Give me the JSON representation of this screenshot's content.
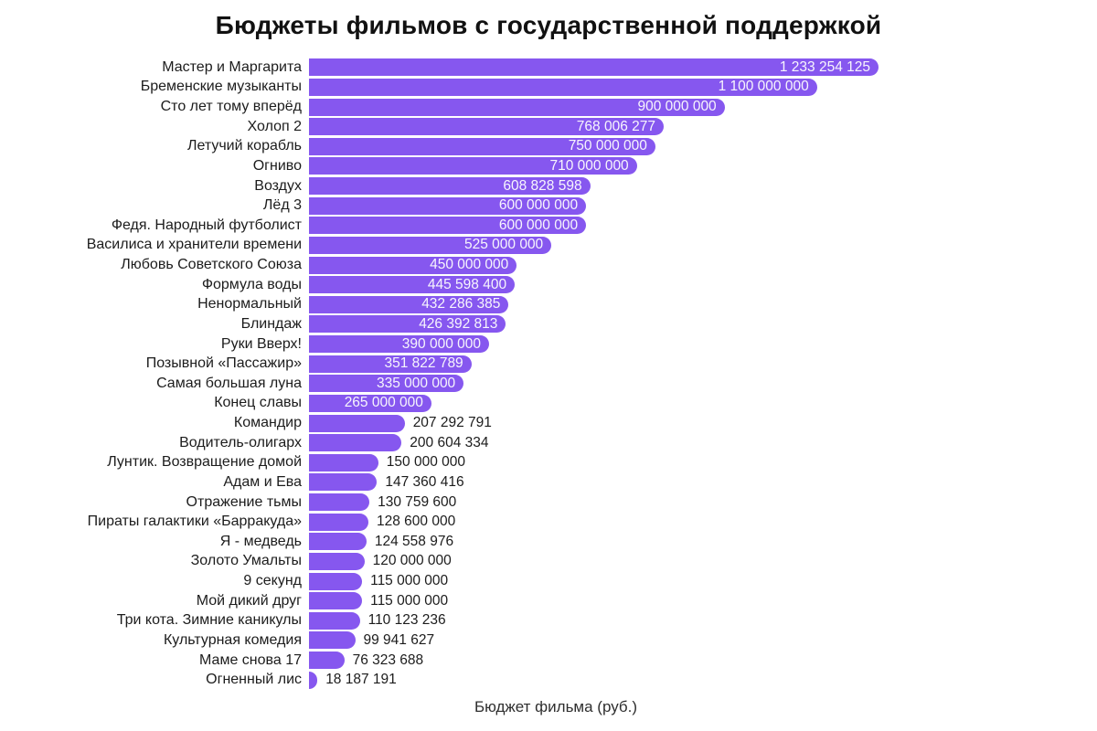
{
  "header": {
    "title": "Бюджеты фильмов с государственной поддержкой"
  },
  "axis": {
    "xlabel": "Бюджет фильма (руб.)"
  },
  "colors": {
    "bar": "#8657EF",
    "value_inside_text": "#f7f5fd",
    "value_outside_text": "#1c1c1c",
    "category_text": "#1c1c1c",
    "title_text": "#111111",
    "background": "#ffffff"
  },
  "chart_data": {
    "type": "bar",
    "orientation": "horizontal",
    "title": "Бюджеты фильмов с государственной поддержкой",
    "xlabel": "Бюджет фильма (руб.)",
    "ylabel": "",
    "xlim": [
      0,
      1233254125
    ],
    "grid": false,
    "legend": null,
    "bar_color": "#8657EF",
    "inside_label_min_value": 250000000,
    "categories": [
      "Мастер и Маргарита",
      "Бременские музыканты",
      "Сто лет тому вперёд",
      "Холоп 2",
      "Летучий корабль",
      "Огниво",
      "Воздух",
      "Лёд 3",
      "Федя. Народный футболист",
      "Василиса и хранители времени",
      "Любовь Советского Союза",
      "Формула воды",
      "Ненормальный",
      "Блиндаж",
      "Руки Вверх!",
      "Позывной «Пассажир»",
      "Самая большая луна",
      "Конец славы",
      "Командир",
      "Водитель-олигарх",
      "Лунтик. Возвращение домой",
      "Адам и Ева",
      "Отражение тьмы",
      "Пираты галактики «Барракуда»",
      "Я - медведь",
      "Золото Умальты",
      "9 секунд",
      "Мой дикий друг",
      "Три кота. Зимние каникулы",
      "Культурная комедия",
      "Маме снова 17",
      "Огненный лис"
    ],
    "values": [
      1233254125,
      1100000000,
      900000000,
      768006277,
      750000000,
      710000000,
      608828598,
      600000000,
      600000000,
      525000000,
      450000000,
      445598400,
      432286385,
      426392813,
      390000000,
      351822789,
      335000000,
      265000000,
      207292791,
      200604334,
      150000000,
      147360416,
      130759600,
      128600000,
      124558976,
      120000000,
      115000000,
      115000000,
      110123236,
      99941627,
      76323688,
      18187191
    ],
    "value_labels": [
      "1 233 254 125",
      "1 100 000 000",
      "900 000 000",
      "768 006 277",
      "750 000 000",
      "710 000 000",
      "608 828 598",
      "600 000 000",
      "600 000 000",
      "525 000 000",
      "450 000 000",
      "445 598 400",
      "432 286 385",
      "426 392 813",
      "390 000 000",
      "351 822 789",
      "335 000 000",
      "265 000 000",
      "207 292 791",
      "200 604 334",
      "150 000 000",
      "147 360 416",
      "130 759 600",
      "128 600 000",
      "124 558 976",
      "120 000 000",
      "115 000 000",
      "115 000 000",
      "110 123 236",
      "99 941 627",
      "76 323 688",
      "18 187 191"
    ]
  }
}
